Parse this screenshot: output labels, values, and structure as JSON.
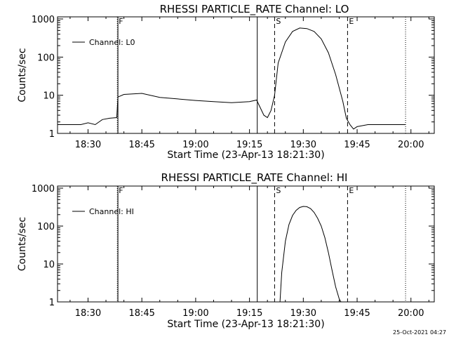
{
  "chart_data": [
    {
      "type": "line",
      "title": "RHESSI PARTICLE_RATE Channel: LO",
      "xlabel": "Start Time (23-Apr-13 18:21:30)",
      "ylabel": "Counts/sec",
      "y_scale": "log",
      "xlim": [
        "18:21:30",
        "20:06:30"
      ],
      "ylim": [
        1,
        1000
      ],
      "x_ticks": [
        "18:30",
        "18:45",
        "19:00",
        "19:15",
        "19:30",
        "19:45",
        "20:00"
      ],
      "y_ticks": [
        "1",
        "10",
        "100",
        "1000"
      ],
      "legend": {
        "label": "Channel: L0",
        "position": "top-left"
      },
      "markers": [
        {
          "label": "F",
          "x": "18:38:10",
          "style": "dotted"
        },
        {
          "label": "",
          "x": "18:38:20",
          "style": "solid"
        },
        {
          "label": "",
          "x": "19:17:10",
          "style": "solid"
        },
        {
          "label": "S",
          "x": "19:22:00",
          "style": "dashed"
        },
        {
          "label": "E",
          "x": "19:42:20",
          "style": "dashed"
        },
        {
          "label": "",
          "x": "19:58:30",
          "style": "dotted"
        }
      ],
      "series": [
        {
          "name": "Channel: L0",
          "x": [
            "18:21:30",
            "18:25",
            "18:28",
            "18:30",
            "18:32",
            "18:34",
            "18:36",
            "18:38",
            "18:38:20",
            "18:40",
            "18:45",
            "18:50",
            "18:55",
            "19:00",
            "19:05",
            "19:10",
            "19:15",
            "19:17",
            "19:19",
            "19:20",
            "19:21",
            "19:22",
            "19:23",
            "19:25",
            "19:27",
            "19:29",
            "19:31",
            "19:33",
            "19:35",
            "19:37",
            "19:39",
            "19:41",
            "19:42",
            "19:43",
            "19:44",
            "19:45",
            "19:48",
            "19:51",
            "19:55",
            "19:58:30"
          ],
          "values": [
            1.7,
            1.7,
            1.7,
            1.9,
            1.7,
            2.3,
            2.5,
            2.6,
            9.0,
            10.5,
            11.2,
            8.8,
            8.0,
            7.3,
            6.8,
            6.4,
            6.8,
            7.5,
            3.0,
            2.6,
            4.0,
            10,
            70,
            250,
            470,
            580,
            560,
            470,
            300,
            130,
            35,
            7,
            2.5,
            1.7,
            1.3,
            1.5,
            1.7,
            1.7,
            1.7,
            1.7
          ]
        }
      ]
    },
    {
      "type": "line",
      "title": "RHESSI PARTICLE_RATE Channel: HI",
      "xlabel": "Start Time (23-Apr-13 18:21:30)",
      "ylabel": "Counts/sec",
      "y_scale": "log",
      "xlim": [
        "18:21:30",
        "20:06:30"
      ],
      "ylim": [
        1,
        1000
      ],
      "x_ticks": [
        "18:30",
        "18:45",
        "19:00",
        "19:15",
        "19:30",
        "19:45",
        "20:00"
      ],
      "y_ticks": [
        "1",
        "10",
        "100",
        "1000"
      ],
      "legend": {
        "label": "Channel: HI",
        "position": "top-left"
      },
      "markers": [
        {
          "label": "F",
          "x": "18:38:10",
          "style": "dotted"
        },
        {
          "label": "",
          "x": "18:38:20",
          "style": "solid"
        },
        {
          "label": "",
          "x": "19:17:10",
          "style": "solid"
        },
        {
          "label": "S",
          "x": "19:22:00",
          "style": "dashed"
        },
        {
          "label": "E",
          "x": "19:42:20",
          "style": "dashed"
        },
        {
          "label": "",
          "x": "19:58:30",
          "style": "dotted"
        }
      ],
      "series": [
        {
          "name": "Channel: HI",
          "x": [
            "19:23:30",
            "19:24",
            "19:25",
            "19:26",
            "19:27",
            "19:28",
            "19:29",
            "19:30",
            "19:31",
            "19:32",
            "19:33",
            "19:34",
            "19:35",
            "19:36",
            "19:37",
            "19:38",
            "19:39",
            "19:40",
            "19:40:30"
          ],
          "values": [
            1,
            6,
            40,
            110,
            190,
            260,
            310,
            330,
            325,
            290,
            230,
            160,
            100,
            50,
            20,
            7,
            2.5,
            1.2,
            1
          ]
        }
      ]
    }
  ],
  "footer": {
    "date_stamp": "25-Oct-2021 04:27"
  }
}
